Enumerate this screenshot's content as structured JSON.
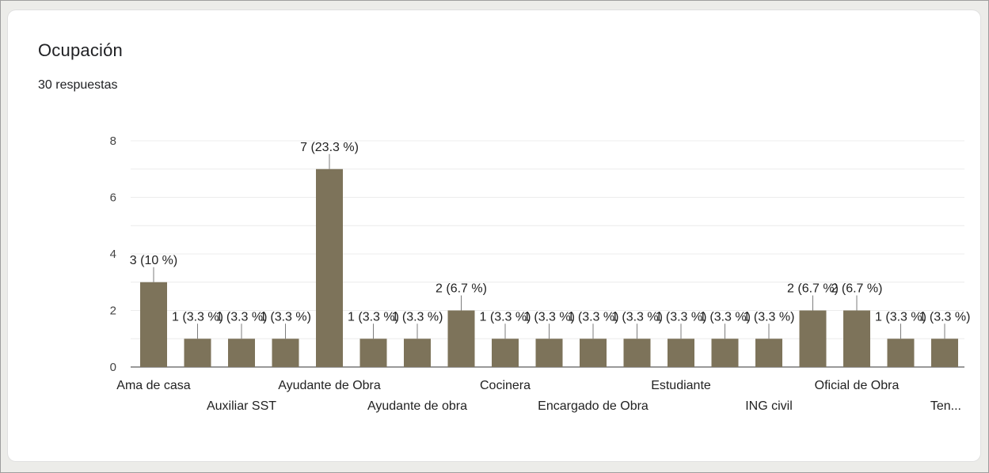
{
  "question": {
    "title": "Ocupación",
    "responses": "30 respuestas"
  },
  "chart_data": {
    "type": "bar",
    "color": "#7d735a",
    "ylim": [
      0,
      8
    ],
    "yticks": [
      0,
      2,
      4,
      6,
      8
    ],
    "categories": [
      "Ama de casa",
      "",
      "Auxiliar SST",
      "",
      "Ayudante de Obra",
      "",
      "Ayudante de obra",
      "",
      "Cocinera",
      "",
      "Encargado de Obra",
      "",
      "Estudiante",
      "",
      "ING civil",
      "",
      "Oficial de Obra",
      "",
      "Ten..."
    ],
    "values": [
      3,
      1,
      1,
      1,
      7,
      1,
      1,
      2,
      1,
      1,
      1,
      1,
      1,
      1,
      1,
      2,
      2,
      1,
      1
    ],
    "data_labels": [
      "3 (10 %)",
      "1 (3.3 %)",
      "1 (3.3 %)",
      "1 (3.3 %)",
      "7 (23.3 %)",
      "1 (3.3 %)",
      "1 (3.3 %)",
      "2 (6.7 %)",
      "1 (3.3 %)",
      "1 (3.3 %)",
      "1 (3.3 %)",
      "1 (3.3 %)",
      "1 (3.3 %)",
      "1 (3.3 %)",
      "1 (3.3 %)",
      "2 (6.7 %)",
      "2 (6.7 %)",
      "1 (3.3 %)",
      "1 (3.3 %)"
    ]
  }
}
